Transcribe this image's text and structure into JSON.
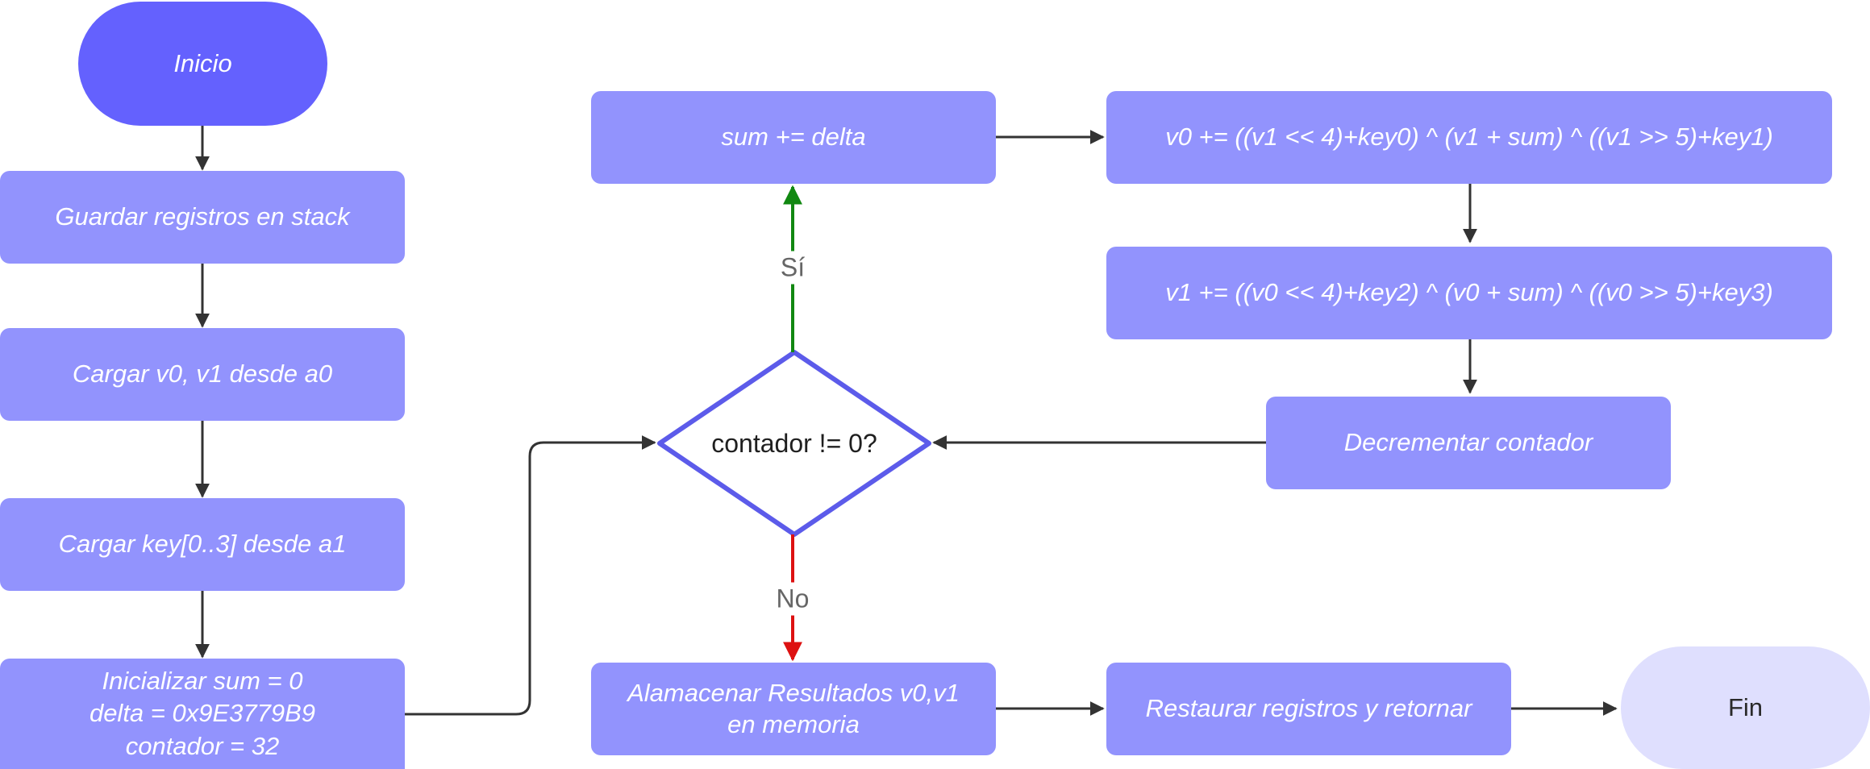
{
  "nodes": {
    "start": "Inicio",
    "save_registers": "Guardar registros en stack",
    "load_v": "Cargar v0, v1 desde a0",
    "load_key": "Cargar key[0..3] desde a1",
    "init": [
      "Inicializar sum = 0",
      "delta = 0x9E3779B9",
      "contador = 32"
    ],
    "decision": "contador != 0?",
    "sum_delta": "sum += delta",
    "v0_update": "v0 += ((v1 << 4)+key0) ^ (v1 + sum) ^ ((v1 >> 5)+key1)",
    "v1_update": "v1 += ((v0 << 4)+key2) ^ (v0 + sum) ^ ((v0 >> 5)+key3)",
    "decrement": "Decrementar contador",
    "store_results": [
      "Alamacenar Resultados v0,v1",
      "en memoria"
    ],
    "restore": "Restaurar registros y retornar",
    "end": "Fin"
  },
  "edge_labels": {
    "yes": "Sí",
    "no": "No"
  },
  "colors": {
    "start_fill": "#6461fe",
    "process_fill": "#9293fd",
    "end_fill": "#dfdffe",
    "decision_stroke": "#5c5bea",
    "edge_default": "#333333",
    "edge_yes": "#118811",
    "edge_no": "#dd1111"
  }
}
